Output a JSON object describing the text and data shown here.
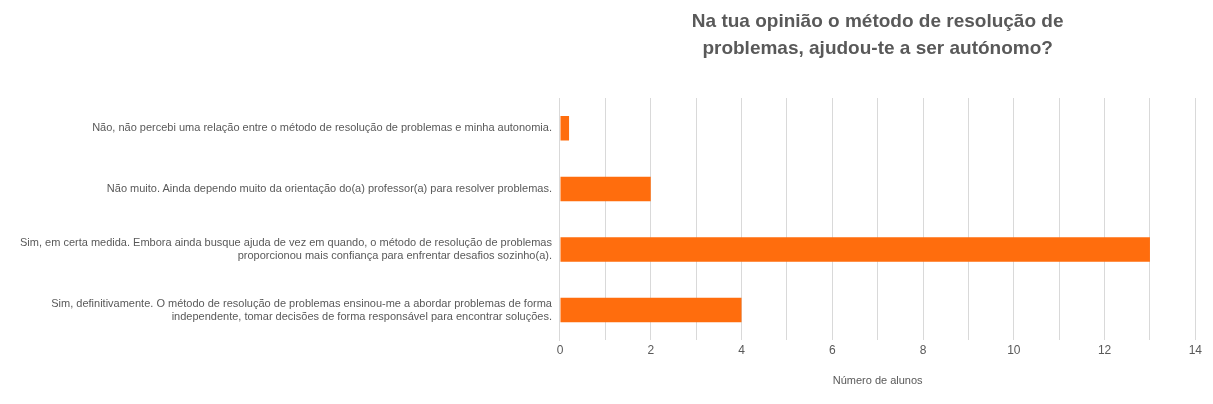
{
  "chart_data": {
    "type": "bar",
    "orientation": "horizontal",
    "title": "Na tua opinião o método de resolução de problemas, ajudou-te a ser autónomo?",
    "xlabel": "Número de alunos",
    "categories": [
      "Não, não percebi uma relação entre o método de resolução de problemas e minha autonomia.",
      "Não muito. Ainda dependo muito da orientação do(a) professor(a) para resolver problemas.",
      "Sim, em certa medida. Embora ainda busque ajuda de vez em quando, o método de resolução de problemas proporcionou mais confiança para enfrentar desafios sozinho(a).",
      "Sim, definitivamente. O método de resolução de problemas ensinou-me a abordar problemas de forma independente, tomar decisões de forma responsável para encontrar soluções."
    ],
    "values": [
      0.2,
      2,
      13,
      4
    ],
    "color": "#ff6d0d",
    "xlim": [
      0,
      14
    ],
    "xticks": [
      0,
      {
        "value": 1,
        "label": null
      },
      2,
      {
        "value": 3,
        "label": null
      },
      4,
      {
        "value": 5,
        "label": null
      },
      6,
      {
        "value": 7,
        "label": null
      },
      8,
      {
        "value": 9,
        "label": null
      },
      10,
      {
        "value": 11,
        "label": null
      },
      12,
      {
        "value": 13,
        "label": null
      },
      14
    ],
    "grid": "x",
    "legend": false
  }
}
